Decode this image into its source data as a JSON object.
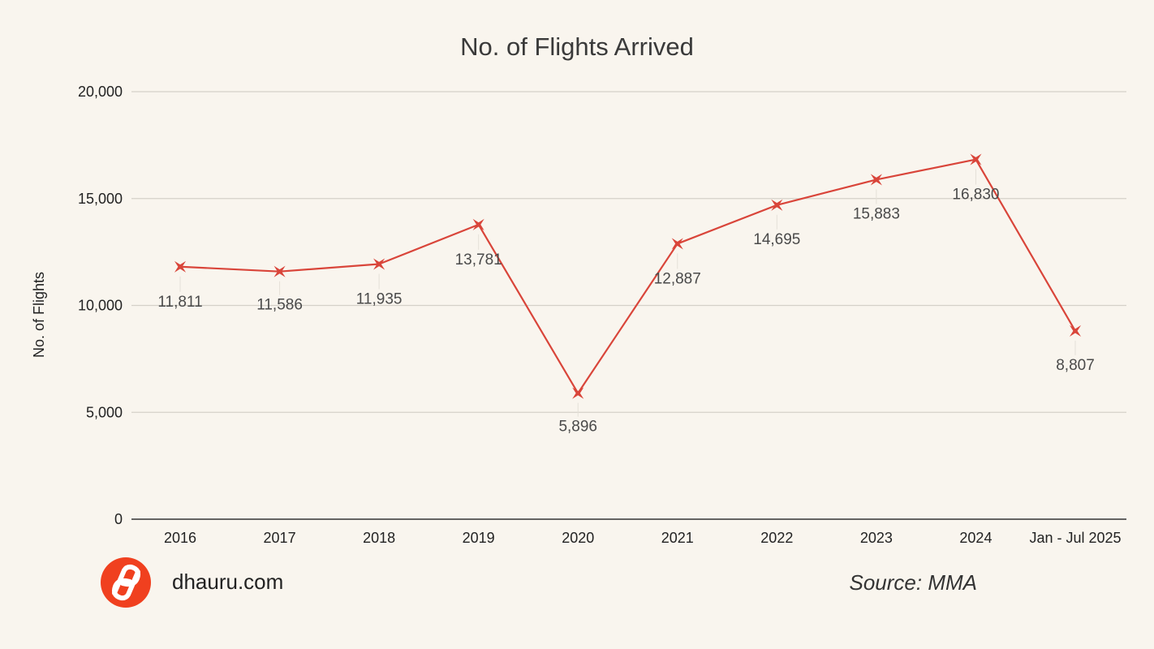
{
  "chart_data": {
    "type": "line",
    "title": "No. of Flights Arrived",
    "xlabel": "",
    "ylabel": "No. of Flights",
    "categories": [
      "2016",
      "2017",
      "2018",
      "2019",
      "2020",
      "2021",
      "2022",
      "2023",
      "2024",
      "Jan - Jul 2025"
    ],
    "series": [
      {
        "values": [
          11811,
          11586,
          11935,
          13781,
          5896,
          12887,
          14695,
          15883,
          16830,
          8807
        ],
        "data_labels": [
          "11,811",
          "11,586",
          "11,935",
          "13,781",
          "5,896",
          "12,887",
          "14,695",
          "15,883",
          "16,830",
          "8,807"
        ],
        "color": "#d9453a",
        "marker": "x-star"
      }
    ],
    "ylim": [
      0,
      20000
    ],
    "yticks": [
      0,
      5000,
      10000,
      15000,
      20000
    ],
    "ytick_labels": [
      "0",
      "5,000",
      "10,000",
      "15,000",
      "20,000"
    ],
    "grid": true,
    "legend": "none"
  },
  "branding": {
    "site": "dhauru.com",
    "logo_icon": "dhauru-logo-icon",
    "logo_color": "#f0401f"
  },
  "source": {
    "label": "Source: MMA"
  },
  "colors": {
    "background": "#f9f5ee",
    "series": "#d9453a"
  }
}
